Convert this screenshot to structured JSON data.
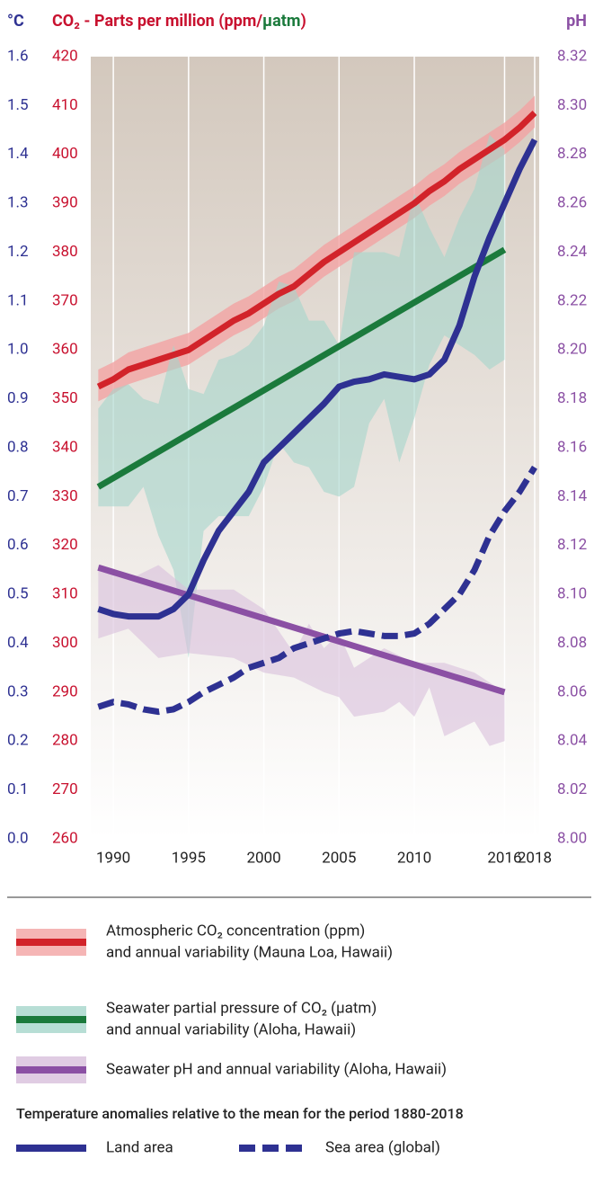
{
  "chart_data": {
    "type": "line",
    "title_parts": [
      "CO₂ - Parts per million (ppm/",
      "µatm",
      ")"
    ],
    "y_axis_title": "°C",
    "y2_axis_title": "pH",
    "xlim": [
      1988.5,
      2018.3
    ],
    "xticks": [
      1990,
      1995,
      2000,
      2005,
      2010,
      2016,
      2018
    ],
    "grid": true,
    "ylim": [
      260,
      420
    ],
    "yticks": [
      260,
      270,
      280,
      290,
      300,
      310,
      320,
      330,
      340,
      350,
      360,
      370,
      380,
      390,
      400,
      410,
      420
    ],
    "y2lim": [
      8.0,
      8.32
    ],
    "y2ticks": [
      {
        "value": 8.0,
        "label": "8.00"
      },
      8.02,
      8.04,
      8.06,
      8.08,
      {
        "value": 8.1,
        "label": "8.10"
      },
      8.12,
      8.14,
      8.16,
      8.18,
      {
        "value": 8.2,
        "label": "8.20"
      },
      8.22,
      8.24,
      8.26,
      8.28,
      {
        "value": 8.3,
        "label": "8.30"
      },
      8.32
    ],
    "y3lim": [
      0,
      1.6
    ],
    "y3ticks": [
      {
        "value": 0,
        "label": "0.0"
      },
      0.1,
      0.2,
      0.3,
      0.4,
      0.5,
      0.6,
      0.7,
      0.8,
      0.9,
      {
        "value": 1,
        "label": "1.0"
      },
      1.1,
      1.2,
      1.3,
      1.4,
      1.5,
      1.6
    ],
    "legend_heading": "Temperature anomalies relative to the mean for the period 1880-2018",
    "series": [
      {
        "name": [
          "Atmospheric CO₂ concentration (ppm)",
          "and annual variability (Mauna Loa, Hawaii)"
        ],
        "axis": "y",
        "color": "#d2232a",
        "band_color": "#f2a2a2",
        "dashed": false,
        "x": [
          1989,
          1990,
          1991,
          1992,
          1993,
          1994,
          1995,
          1996,
          1997,
          1998,
          1999,
          2000,
          2001,
          2002,
          2003,
          2004,
          2005,
          2006,
          2007,
          2008,
          2009,
          2010,
          2011,
          2012,
          2013,
          2014,
          2015,
          2016,
          2017,
          2018
        ],
        "values": [
          352.5,
          354,
          356,
          357,
          358,
          359,
          360,
          362,
          364,
          366,
          367.5,
          369.5,
          371.5,
          373,
          375.5,
          378,
          380,
          382,
          384,
          386,
          388,
          390,
          392.5,
          394.5,
          397,
          399,
          401,
          403,
          405.5,
          408.5
        ],
        "band": {
          "x": [
            1989,
            1990,
            1991,
            1992,
            1993,
            1994,
            1995,
            1996,
            1997,
            1998,
            1999,
            2000,
            2001,
            2002,
            2003,
            2004,
            2005,
            2006,
            2007,
            2008,
            2009,
            2010,
            2011,
            2012,
            2013,
            2014,
            2015,
            2016,
            2017,
            2018
          ],
          "upper": [
            356,
            357.5,
            359.5,
            360.5,
            361.5,
            362.5,
            363.5,
            365.5,
            367.5,
            369.5,
            371,
            373,
            375,
            376.5,
            379,
            381.5,
            383.5,
            385.5,
            387.5,
            389.5,
            391.5,
            393.5,
            396,
            398,
            400.5,
            402.5,
            404.5,
            406.5,
            409,
            412
          ],
          "lower": [
            349.5,
            351,
            353,
            354,
            355,
            356,
            357,
            359,
            361,
            363,
            364.5,
            366.5,
            368.5,
            370,
            372.5,
            375,
            377,
            379,
            381,
            383,
            385,
            387,
            389.5,
            391.5,
            394,
            396,
            398,
            400,
            402.5,
            405.5
          ]
        }
      },
      {
        "name": [
          "Seawater partial pressure of CO₂ (µatm)",
          "and annual variability (Aloha, Hawaii)"
        ],
        "axis": "y",
        "color": "#1b7a3c",
        "band_color": "#a5d6cb",
        "dashed": false,
        "x": [
          1989,
          2016
        ],
        "values": [
          332,
          380.5
        ],
        "band": {
          "x": [
            1989,
            1990,
            1991,
            1992,
            1993,
            1994,
            1995,
            1996,
            1997,
            1998,
            1999,
            2000,
            2001,
            2002,
            2003,
            2004,
            2005,
            2006,
            2007,
            2008,
            2009,
            2010,
            2011,
            2012,
            2013,
            2014,
            2015,
            2016
          ],
          "upper": [
            348,
            352,
            353,
            350,
            349,
            361,
            352,
            351,
            358,
            359,
            361,
            365,
            374,
            373,
            366,
            366,
            361,
            380,
            380,
            380,
            379,
            392,
            385,
            379,
            387,
            393,
            404,
            401
          ],
          "lower": [
            328,
            328,
            328,
            332,
            322,
            315,
            297,
            323,
            326,
            326,
            326,
            332,
            341,
            337,
            336,
            331,
            330,
            332,
            345,
            350,
            337,
            346,
            357,
            363,
            361,
            359,
            356,
            358
          ]
        }
      },
      {
        "name": [
          "Seawater pH and annual variability (Aloha, Hawaii)"
        ],
        "axis": "y2",
        "color": "#8b50a4",
        "band_color": "#d8bfdc",
        "dashed": false,
        "x": [
          1989,
          2016
        ],
        "values": [
          8.111,
          8.06
        ],
        "band": {
          "x": [
            1989,
            1991,
            1993,
            1995,
            1998,
            2000,
            2002,
            2003,
            2004,
            2005,
            2006,
            2008,
            2009,
            2010,
            2011,
            2012,
            2014,
            2015,
            2016
          ],
          "upper": [
            8.112,
            8.106,
            8.112,
            8.102,
            8.102,
            8.094,
            8.076,
            8.088,
            8.078,
            8.084,
            8.07,
            8.078,
            8.075,
            8.072,
            8.072,
            8.072,
            8.068,
            8.064,
            8.06
          ],
          "lower": [
            8.082,
            8.086,
            8.074,
            8.076,
            8.074,
            8.068,
            8.066,
            8.063,
            8.06,
            8.058,
            8.05,
            8.052,
            8.056,
            8.05,
            8.062,
            8.042,
            8.048,
            8.038,
            8.04
          ]
        }
      },
      {
        "name": [
          "Land area"
        ],
        "axis": "y3",
        "color": "#2e3192",
        "dashed": false,
        "x": [
          1989,
          1990,
          1991,
          1992,
          1993,
          1994,
          1995,
          1996,
          1997,
          1998,
          1999,
          2000,
          2001,
          2002,
          2003,
          2004,
          2005,
          2006,
          2007,
          2008,
          2009,
          2010,
          2011,
          2012,
          2013,
          2014,
          2015,
          2016,
          2017,
          2018
        ],
        "values": [
          0.47,
          0.46,
          0.455,
          0.455,
          0.455,
          0.47,
          0.5,
          0.57,
          0.63,
          0.67,
          0.71,
          0.77,
          0.8,
          0.83,
          0.86,
          0.89,
          0.925,
          0.935,
          0.94,
          0.95,
          0.945,
          0.94,
          0.95,
          0.98,
          1.05,
          1.15,
          1.23,
          1.3,
          1.37,
          1.43
        ]
      },
      {
        "name": [
          "Sea area (global)"
        ],
        "axis": "y3",
        "color": "#2e3192",
        "dashed": true,
        "x": [
          1989,
          1990,
          1991,
          1992,
          1993,
          1994,
          1995,
          1996,
          1997,
          1998,
          1999,
          2000,
          2001,
          2002,
          2003,
          2004,
          2005,
          2006,
          2007,
          2008,
          2009,
          2010,
          2011,
          2012,
          2013,
          2014,
          2015,
          2016,
          2017,
          2018
        ],
        "values": [
          0.27,
          0.28,
          0.275,
          0.265,
          0.26,
          0.265,
          0.28,
          0.3,
          0.315,
          0.33,
          0.35,
          0.36,
          0.37,
          0.39,
          0.4,
          0.41,
          0.42,
          0.425,
          0.42,
          0.415,
          0.415,
          0.42,
          0.44,
          0.47,
          0.5,
          0.55,
          0.62,
          0.67,
          0.71,
          0.76
        ]
      }
    ]
  }
}
